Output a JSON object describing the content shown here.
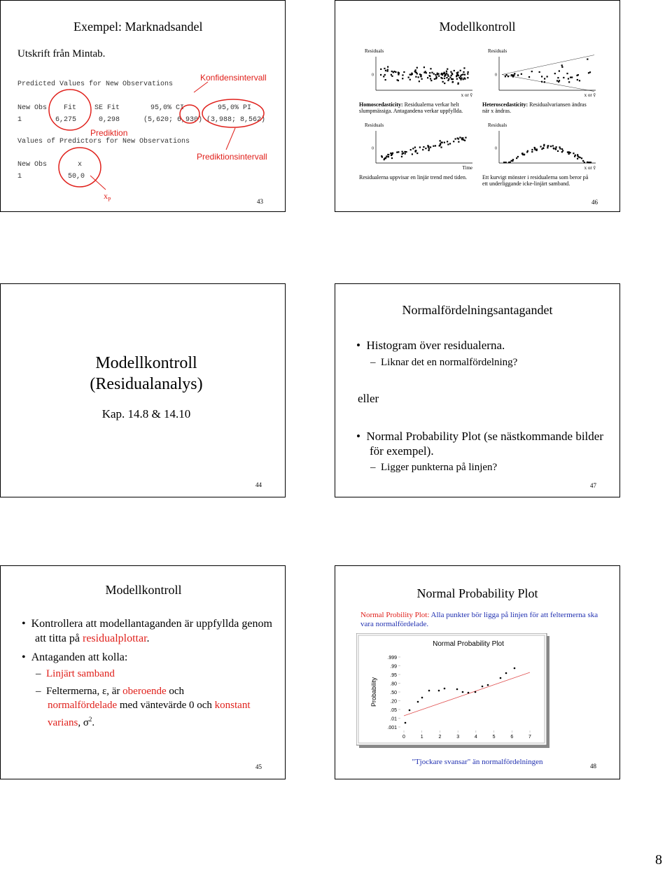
{
  "slide43": {
    "title": "Exempel: Marknadsandel",
    "subtitle": "Utskrift från Mintab.",
    "table1_title": "Predicted Values for New Observations",
    "ci_note": "Konfidensintervall",
    "table1_header": [
      "New Obs",
      "Fit",
      "SE Fit",
      "95,0% CI",
      "95,0% PI"
    ],
    "table1_row": [
      "1",
      "6,275",
      "0,298",
      "(5,620; 6,930)",
      "(3,988; 8,562)"
    ],
    "pred_note": "Prediktion",
    "table2_title": "Values of Predictors for New Observations",
    "table2_header": [
      "New Obs",
      "x"
    ],
    "table2_row": [
      "1",
      "50,0"
    ],
    "pi_note": "Prediktionsintervall",
    "xp": "x",
    "xp_sub": "P",
    "page": "43"
  },
  "slide46": {
    "title": "Modellkontroll",
    "panels": [
      {
        "y_label": "Residuals",
        "zero": "0",
        "x_label": "x or ŷ",
        "caption_bold": "Homoscedasticity:",
        "caption": " Residualerna verkar helt slumpmässiga. Antagandena verkar uppfyllda."
      },
      {
        "y_label": "Residuals",
        "zero": "0",
        "x_label": "x or ŷ",
        "caption_bold": "Heteroscedasticity:",
        "caption": " Residualvariansen ändras när x ändras."
      },
      {
        "y_label": "Residuals",
        "zero": "0",
        "x_label": "Time",
        "caption": "Residualerna uppvisar en linjär trend med tiden."
      },
      {
        "y_label": "Residuals",
        "zero": "0",
        "x_label": "x or ŷ",
        "caption": "Ett kurvigt mönster i residualerna som beror på ett underliggande icke-linjärt samband."
      }
    ],
    "page": "46"
  },
  "slide44": {
    "title_line1": "Modellkontroll",
    "title_line2": "(Residualanalys)",
    "subtitle": "Kap. 14.8 & 14.10",
    "page": "44"
  },
  "slide47": {
    "title": "Normalfördelningsantagandet",
    "bullet1": "Histogram över residualerna.",
    "sub1": "Liknar det en normalfördelning?",
    "eller": "eller",
    "bullet2": "Normal Probability Plot (se nästkommande bilder för exempel).",
    "sub2": "Ligger punkterna på linjen?",
    "page": "47"
  },
  "slide45": {
    "title": "Modellkontroll",
    "bullet1": [
      "Kontrollera att modellantaganden är uppfyllda genom att titta på ",
      "residualplottar",
      "."
    ],
    "bullet2": "Antaganden att kolla:",
    "sub1": "Linjärt samband",
    "sub2": [
      "Feltermerna, ε, är ",
      "oberoende",
      " och ",
      "normalfördelade",
      " med väntevärde 0 och ",
      "konstant varians",
      ", σ",
      "2",
      "."
    ],
    "page": "45"
  },
  "slide48": {
    "title": "Normal Probability Plot",
    "intro_red": "Normal Probility Plot:",
    "intro": " Alla punkter bör ligga på linjen för att feltermerna ska vara normalfördelade.",
    "plot_title": "Normal Probability Plot",
    "y_label": "Probability",
    "yticks": [
      {
        "value": 0.999,
        "label": ".999"
      },
      {
        "value": 0.99,
        "label": ".99"
      },
      {
        "value": 0.95,
        "label": ".95"
      },
      {
        "value": 0.8,
        "label": ".80"
      },
      {
        "value": 0.5,
        "label": ".50"
      },
      {
        "value": 0.2,
        "label": ".20"
      },
      {
        "value": 0.05,
        "label": ".05"
      },
      {
        "value": 0.01,
        "label": ".01"
      },
      {
        "value": 0.001,
        "label": ".001"
      }
    ],
    "xticks": [
      0,
      1,
      2,
      3,
      4,
      5,
      6,
      7
    ],
    "caption": "\"Tjockare svansar\" än normalfördelningen",
    "page": "48"
  },
  "page_number": "8"
}
